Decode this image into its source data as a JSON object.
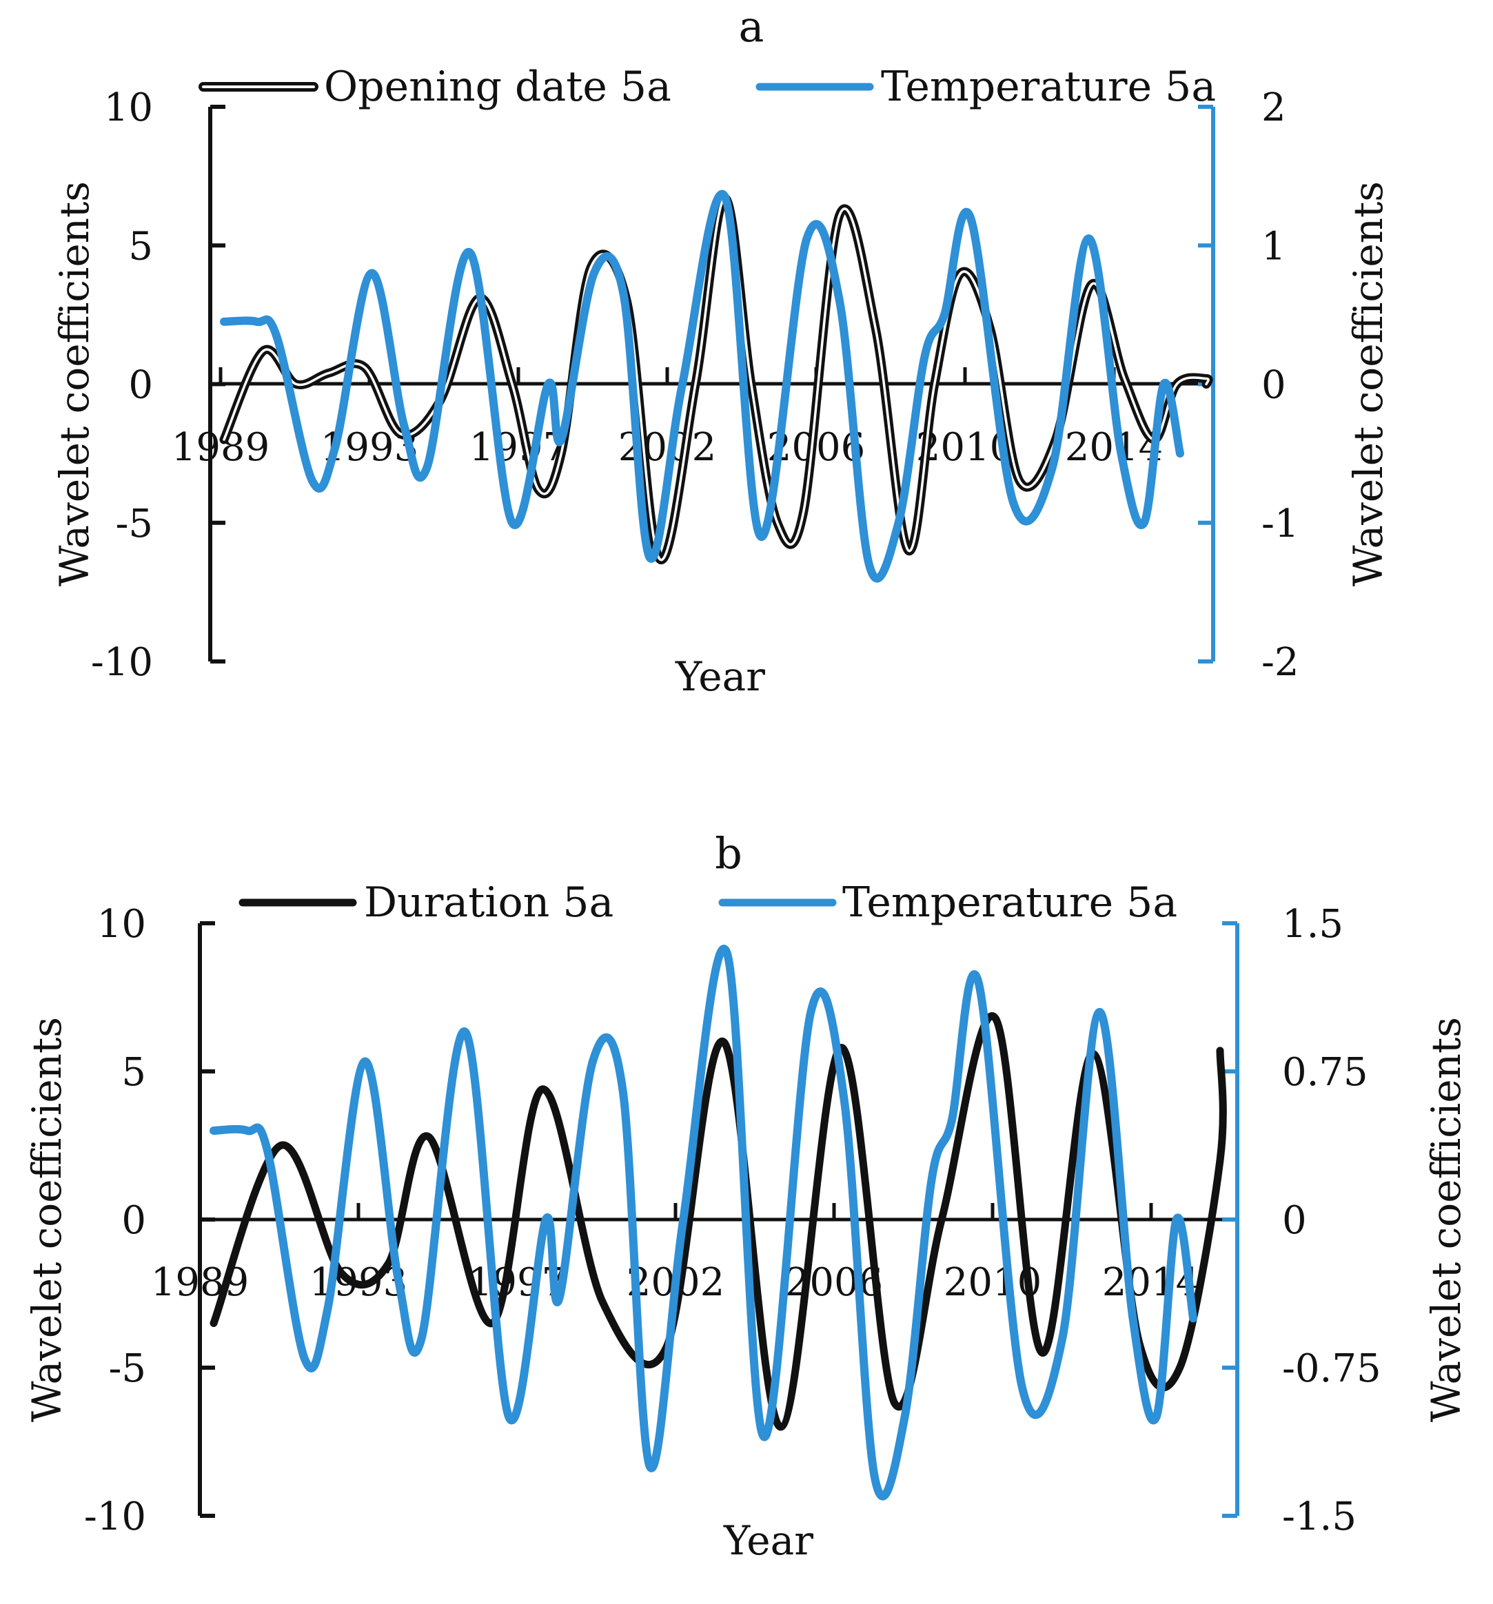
{
  "colors": {
    "primary": "#111111",
    "secondary": "#2e90d6"
  },
  "chart_data": [
    {
      "type": "line",
      "title": "a",
      "xlabel": "Year",
      "ylabel_left": "Wavelet coefficients",
      "ylabel_right": "Wavelet coefficients",
      "x_tick_labels": [
        "1989",
        "1993",
        "1997",
        "2002",
        "2006",
        "2010",
        "2014"
      ],
      "ylim_left": [
        -10,
        10
      ],
      "yticks_left": [
        -10,
        -5,
        0,
        5,
        10
      ],
      "ylim_right": [
        -2,
        2
      ],
      "yticks_right": [
        -2,
        -1,
        0,
        1,
        2
      ],
      "ytick_labels_right": [
        "-2",
        "-1",
        "0",
        "1",
        "2"
      ],
      "legend": [
        "Opening date 5a",
        "Temperature 5a"
      ],
      "series": [
        {
          "name": "Opening date 5a",
          "axis": "left",
          "style": "double",
          "x": [
            0,
            1.2,
            2.2,
            3.2,
            4.3,
            5.4,
            6.6,
            7.8,
            8.8,
            9.6,
            10.3,
            11.2,
            12.3,
            13.3,
            14.4,
            15.3,
            16.1,
            16.9,
            17.7,
            18.8,
            19.9,
            20.9,
            21.7,
            22.5,
            23.4,
            24.3,
            25.4,
            26.5,
            27.5,
            28.4,
            29.1,
            30,
            30.5
          ],
          "values": [
            -2.0,
            1.2,
            0.0,
            0.4,
            0.6,
            -1.8,
            -0.6,
            3.1,
            0.0,
            -3.8,
            -2.5,
            4.2,
            3.0,
            -6.3,
            0.0,
            6.7,
            0.0,
            -5.0,
            -4.6,
            6.1,
            2.0,
            -6.0,
            0.0,
            4.0,
            2.0,
            -3.5,
            -2.0,
            3.6,
            0.2,
            -2.0,
            0.0,
            0.2,
            0.0
          ]
        },
        {
          "name": "Temperature 5a",
          "axis": "right",
          "style": "single",
          "x": [
            0,
            1.0,
            1.6,
            2.7,
            3.4,
            4.5,
            5.5,
            6.2,
            7.5,
            8.8,
            9.9,
            10.3,
            11.3,
            12.2,
            13.0,
            14.0,
            15.3,
            16.4,
            17.8,
            18.8,
            19.7,
            20.6,
            21.4,
            22.0,
            22.8,
            24.1,
            25.3,
            26.4,
            27.4,
            28.1,
            28.7,
            29.2
          ],
          "values": [
            0.45,
            0.45,
            0.35,
            -0.7,
            -0.45,
            0.8,
            -0.3,
            -0.6,
            0.95,
            -1.0,
            0.0,
            -0.4,
            0.8,
            0.65,
            -1.25,
            0.0,
            1.35,
            -1.1,
            1.05,
            0.6,
            -1.3,
            -1.0,
            0.2,
            0.5,
            1.2,
            -0.85,
            -0.6,
            1.05,
            -0.5,
            -1.0,
            0.0,
            -0.5
          ]
        }
      ]
    },
    {
      "type": "line",
      "title": "b",
      "xlabel": "Year",
      "ylabel_left": "Wavelet coefficients",
      "ylabel_right": "Wavelet coefficients",
      "x_tick_labels": [
        "1989",
        "1993",
        "1997",
        "2002",
        "2006",
        "2010",
        "2014"
      ],
      "ylim_left": [
        -10,
        10
      ],
      "yticks_left": [
        -10,
        -5,
        0,
        5,
        10
      ],
      "ylim_right": [
        -1.5,
        1.5
      ],
      "yticks_right": [
        -1.5,
        -0.75,
        0,
        0.75,
        1.5
      ],
      "ytick_labels_right": [
        "-1.5",
        "-0.75",
        "0",
        "0.75",
        "1.5"
      ],
      "legend": [
        "Duration 5a",
        "Temperature 5a"
      ],
      "series": [
        {
          "name": "Duration 5a",
          "axis": "left",
          "style": "single",
          "x": [
            0,
            2.0,
            3.8,
            5.2,
            6.4,
            8.3,
            9.8,
            11.6,
            13.5,
            15.2,
            16.9,
            18.7,
            20.3,
            21.7,
            23.3,
            24.7,
            26.2,
            27.6,
            28.8,
            30.0,
            30.3
          ],
          "values": [
            -3.5,
            2.5,
            -1.8,
            -1.5,
            2.8,
            -3.5,
            4.4,
            -2.8,
            -4.3,
            6.0,
            -7.0,
            5.8,
            -6.2,
            0.0,
            6.8,
            -4.5,
            5.6,
            -4.2,
            -5.0,
            2.0,
            5.7
          ],
          "x_note": "tiny"
        },
        {
          "name": "Temperature 5a",
          "axis": "right",
          "style": "single",
          "x": [
            0,
            1.0,
            1.6,
            2.7,
            3.4,
            4.5,
            5.5,
            6.2,
            7.5,
            8.8,
            9.9,
            10.3,
            11.3,
            12.2,
            13.0,
            14.0,
            15.3,
            16.4,
            17.8,
            18.8,
            19.7,
            20.6,
            21.4,
            22.0,
            22.8,
            24.1,
            25.3,
            26.4,
            27.4,
            28.1,
            28.7,
            29.2
          ],
          "values": [
            0.45,
            0.45,
            0.35,
            -0.7,
            -0.45,
            0.8,
            -0.3,
            -0.6,
            0.95,
            -1.0,
            0.0,
            -0.4,
            0.8,
            0.65,
            -1.25,
            0.0,
            1.35,
            -1.1,
            1.05,
            0.6,
            -1.3,
            -1.0,
            0.2,
            0.5,
            1.2,
            -0.85,
            -0.6,
            1.05,
            -0.5,
            -1.0,
            0.0,
            -0.5
          ]
        }
      ]
    }
  ]
}
